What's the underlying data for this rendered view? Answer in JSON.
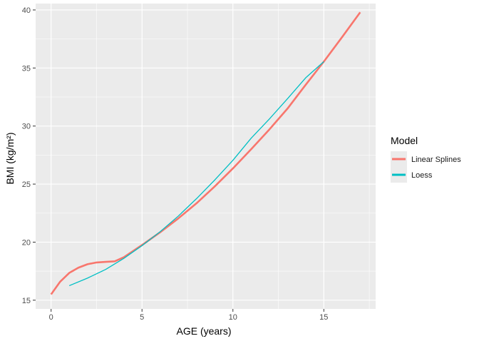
{
  "chart_data": {
    "type": "line",
    "title": "",
    "xlabel": "AGE (years)",
    "ylabel": "BMI (kg/m²)",
    "xlim": [
      -0.85,
      17.85
    ],
    "ylim": [
      14.25,
      40.55
    ],
    "xticks": [
      0,
      5,
      10,
      15
    ],
    "yticks": [
      15,
      20,
      25,
      30,
      35,
      40
    ],
    "grid": true,
    "legend": {
      "title": "Model",
      "placement": "right"
    },
    "series": [
      {
        "name": "Linear Splines",
        "color": "#F8766D",
        "x": [
          0,
          0.5,
          1,
          1.5,
          2,
          2.5,
          3,
          3.5,
          4,
          5,
          6,
          7,
          8,
          9,
          10,
          11,
          12,
          13,
          14,
          15,
          16,
          17
        ],
        "y": [
          15.5,
          16.6,
          17.35,
          17.8,
          18.1,
          18.25,
          18.3,
          18.35,
          18.7,
          19.75,
          20.85,
          22.05,
          23.35,
          24.8,
          26.35,
          28.0,
          29.7,
          31.5,
          33.55,
          35.55,
          37.65,
          39.8
        ]
      },
      {
        "name": "Loess",
        "color": "#00BFC4",
        "x": [
          1,
          2,
          3,
          4,
          5,
          6,
          7,
          8,
          9,
          10,
          11,
          12,
          13,
          14,
          15
        ],
        "y": [
          16.25,
          16.9,
          17.65,
          18.6,
          19.7,
          20.9,
          22.25,
          23.75,
          25.35,
          27.05,
          28.95,
          30.6,
          32.35,
          34.15,
          35.55
        ]
      }
    ]
  }
}
